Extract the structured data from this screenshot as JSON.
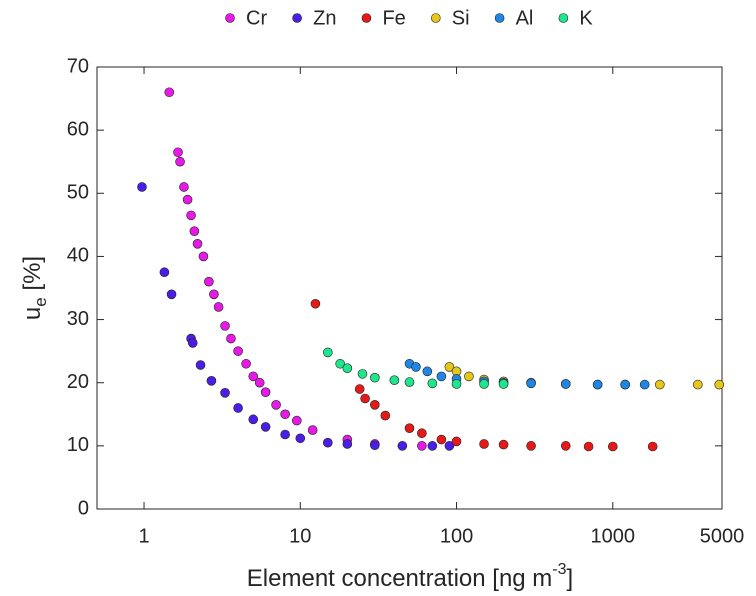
{
  "chart_data": {
    "type": "scatter",
    "xlabel": {
      "text": "Element concentration [ng m",
      "sup": "-3",
      "end": "]"
    },
    "ylabel": {
      "main": "u",
      "sub": "e",
      "unit": " [%]"
    },
    "xscale": "log",
    "xlim": [
      0.5,
      5000
    ],
    "xticks": [
      1,
      10,
      100,
      1000,
      5000
    ],
    "ylim": [
      0,
      70
    ],
    "yticks": [
      0,
      10,
      20,
      30,
      40,
      50,
      60,
      70
    ],
    "legend": "top",
    "series": [
      {
        "name": "Cr",
        "color": "#e619e6",
        "x": [
          1.45,
          1.65,
          1.7,
          1.8,
          1.9,
          2.0,
          2.1,
          2.2,
          2.4,
          2.6,
          2.8,
          3.0,
          3.3,
          3.6,
          4.0,
          4.5,
          5.0,
          5.5,
          6.0,
          7.0,
          8.0,
          9.5,
          12,
          20,
          30,
          60
        ],
        "values": [
          66,
          56.5,
          55,
          51,
          49,
          46.5,
          44,
          42,
          40,
          36,
          34,
          32,
          29,
          27,
          25,
          23,
          21,
          20,
          18.5,
          16.5,
          15,
          14,
          12.5,
          11,
          10.3,
          10
        ]
      },
      {
        "name": "Zn",
        "color": "#4b1ee6",
        "x": [
          0.97,
          1.35,
          1.5,
          2.0,
          2.05,
          2.3,
          2.7,
          3.3,
          4.0,
          5.0,
          6.0,
          8.0,
          10,
          15,
          20,
          30,
          45,
          70,
          90
        ],
        "values": [
          51,
          37.5,
          34,
          27,
          26.3,
          22.8,
          20.3,
          18.4,
          16,
          14.2,
          13,
          11.8,
          11.2,
          10.5,
          10.3,
          10.1,
          10,
          10,
          10
        ]
      },
      {
        "name": "Fe",
        "color": "#e61919",
        "x": [
          12.5,
          24,
          26,
          30,
          35,
          50,
          60,
          80,
          100,
          150,
          200,
          300,
          500,
          700,
          1000,
          1800
        ],
        "values": [
          32.5,
          19,
          17.5,
          16.5,
          14.8,
          12.8,
          12,
          11,
          10.7,
          10.3,
          10.2,
          10,
          10,
          9.9,
          9.9,
          9.9
        ]
      },
      {
        "name": "Si",
        "color": "#e6c619",
        "x": [
          90,
          100,
          120,
          150,
          200,
          300,
          500,
          800,
          1200,
          2000,
          3500,
          4800
        ],
        "values": [
          22.5,
          21.8,
          21,
          20.5,
          20.2,
          20,
          19.8,
          19.7,
          19.7,
          19.7,
          19.7,
          19.7
        ]
      },
      {
        "name": "Al",
        "color": "#1e87e6",
        "x": [
          50,
          55,
          65,
          80,
          100,
          150,
          200,
          300,
          500,
          800,
          1200,
          1600
        ],
        "values": [
          23,
          22.5,
          21.8,
          21,
          20.6,
          20.2,
          20,
          19.9,
          19.8,
          19.7,
          19.7,
          19.7
        ]
      },
      {
        "name": "K",
        "color": "#1ee68c",
        "x": [
          15,
          18,
          20,
          25,
          30,
          40,
          50,
          70,
          100,
          150,
          200
        ],
        "values": [
          24.8,
          23,
          22.3,
          21.4,
          20.8,
          20.4,
          20.1,
          19.9,
          19.8,
          19.8,
          19.8
        ]
      }
    ]
  }
}
